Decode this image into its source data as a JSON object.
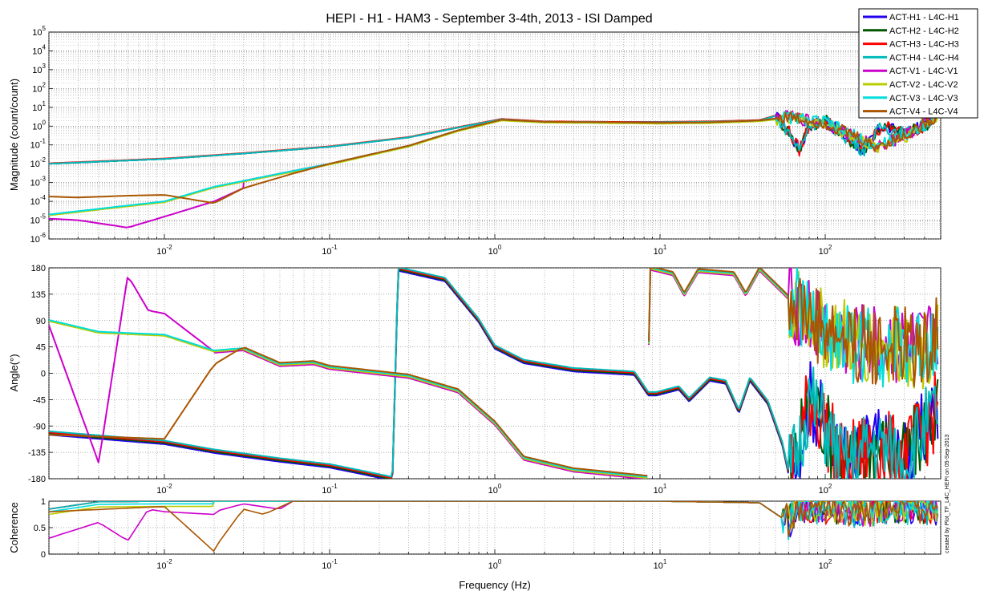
{
  "chart_data": {
    "type": "line",
    "title": "HEPI - H1 - HAM3 - September 3-4th, 2013 - ISI Damped",
    "xlabel": "Frequency (Hz)",
    "xscale": "log",
    "xlim": [
      0.002,
      500
    ],
    "x_ticks": [
      {
        "value": 0.01,
        "base": "10",
        "exp": "-2"
      },
      {
        "value": 0.1,
        "base": "10",
        "exp": "-1"
      },
      {
        "value": 1,
        "base": "10",
        "exp": "0"
      },
      {
        "value": 10,
        "base": "10",
        "exp": "1"
      },
      {
        "value": 100,
        "base": "10",
        "exp": "2"
      }
    ],
    "side_note": "created by Plot_TF_L4C_HEPI on 05-Sep-2013",
    "legend_position": "top-right",
    "series": [
      {
        "name": "ACT-H1 - L4C-H1",
        "color": "#2200ee"
      },
      {
        "name": "ACT-H2 - L4C-H2",
        "color": "#005500"
      },
      {
        "name": "ACT-H3 - L4C-H3",
        "color": "#ff0000"
      },
      {
        "name": "ACT-H4 - L4C-H4",
        "color": "#00bbbb"
      },
      {
        "name": "ACT-V1 - L4C-V1",
        "color": "#cc00cc"
      },
      {
        "name": "ACT-V2 - L4C-V2",
        "color": "#bbcc00"
      },
      {
        "name": "ACT-V3 - L4C-V3",
        "color": "#00dddd"
      },
      {
        "name": "ACT-V4 - L4C-V4",
        "color": "#aa5500"
      }
    ],
    "subplots": {
      "magnitude": {
        "ylabel": "Magnitude (count/count)",
        "yscale": "log",
        "ylim": [
          1e-06,
          100000.0
        ],
        "y_ticks": [
          {
            "value": 1e-06,
            "base": "10",
            "exp": "-6"
          },
          {
            "value": 1e-05,
            "base": "10",
            "exp": "-5"
          },
          {
            "value": 0.0001,
            "base": "10",
            "exp": "-4"
          },
          {
            "value": 0.001,
            "base": "10",
            "exp": "-3"
          },
          {
            "value": 0.01,
            "base": "10",
            "exp": "-2"
          },
          {
            "value": 0.1,
            "base": "10",
            "exp": "-1"
          },
          {
            "value": 1,
            "base": "10",
            "exp": "0"
          },
          {
            "value": 10,
            "base": "10",
            "exp": "1"
          },
          {
            "value": 100,
            "base": "10",
            "exp": "2"
          },
          {
            "value": 1000,
            "base": "10",
            "exp": "3"
          },
          {
            "value": 10000,
            "base": "10",
            "exp": "4"
          },
          {
            "value": 100000,
            "base": "10",
            "exp": "5"
          }
        ],
        "data": {
          "h": [
            [
              0.002,
              0.01
            ],
            [
              0.01,
              0.018
            ],
            [
              0.03,
              0.035
            ],
            [
              0.1,
              0.08
            ],
            [
              0.3,
              0.25
            ],
            [
              0.7,
              1.1
            ],
            [
              1.1,
              2.3
            ],
            [
              2,
              1.7
            ],
            [
              5,
              1.6
            ],
            [
              10,
              1.6
            ],
            [
              20,
              1.7
            ],
            [
              40,
              2.0
            ],
            [
              50,
              3.5
            ],
            [
              60,
              0.5
            ],
            [
              70,
              0.05
            ],
            [
              80,
              1.2
            ],
            [
              100,
              2.0
            ],
            [
              130,
              0.3
            ],
            [
              170,
              0.05
            ],
            [
              220,
              1.0
            ],
            [
              300,
              0.4
            ],
            [
              400,
              1.0
            ],
            [
              480,
              5.0
            ]
          ],
          "v_low": [
            [
              0.002,
              2e-05
            ],
            [
              0.01,
              0.0001
            ],
            [
              0.02,
              0.0006
            ],
            [
              0.05,
              0.003
            ],
            [
              0.1,
              0.01
            ],
            [
              0.3,
              0.09
            ],
            [
              0.6,
              0.6
            ],
            [
              1.1,
              2.2
            ],
            [
              2,
              1.7
            ],
            [
              5,
              1.6
            ],
            [
              10,
              1.5
            ],
            [
              20,
              1.6
            ],
            [
              40,
              2.0
            ],
            [
              60,
              3.0
            ],
            [
              100,
              1.5
            ],
            [
              150,
              0.3
            ],
            [
              200,
              0.08
            ],
            [
              300,
              0.3
            ],
            [
              480,
              3.5
            ]
          ],
          "v1": [
            [
              0.002,
              1.2e-05
            ],
            [
              0.003,
              1e-05
            ],
            [
              0.006,
              4e-06
            ],
            [
              0.012,
              2.5e-05
            ],
            [
              0.02,
              0.0001
            ],
            [
              0.03,
              0.0005
            ]
          ],
          "v4": [
            [
              0.002,
              0.00018
            ],
            [
              0.003,
              0.00016
            ],
            [
              0.006,
              0.0002
            ],
            [
              0.01,
              0.00022
            ],
            [
              0.02,
              8e-05
            ],
            [
              0.03,
              0.0005
            ],
            [
              0.06,
              0.003
            ],
            [
              0.1,
              0.01
            ]
          ]
        }
      },
      "phase": {
        "ylabel": "Angle(°)",
        "ylim": [
          -180,
          180
        ],
        "y_ticks": [
          -180,
          -135,
          -90,
          -45,
          0,
          45,
          90,
          135,
          180
        ],
        "data": {
          "h": [
            [
              0.002,
              -102
            ],
            [
              0.01,
              -118
            ],
            [
              0.02,
              -133
            ],
            [
              0.05,
              -148
            ],
            [
              0.1,
              -158
            ],
            [
              0.15,
              -168
            ],
            [
              0.24,
              -180
            ],
            [
              0.26,
              178
            ],
            [
              0.5,
              160
            ],
            [
              0.8,
              90
            ],
            [
              1.0,
              45
            ],
            [
              1.5,
              20
            ],
            [
              3,
              6
            ],
            [
              7,
              0
            ],
            [
              8.5,
              -35
            ],
            [
              9.5,
              -35
            ],
            [
              13,
              -25
            ],
            [
              15,
              -45
            ],
            [
              20,
              -10
            ],
            [
              25,
              -15
            ],
            [
              30,
              -65
            ],
            [
              35,
              -10
            ],
            [
              45,
              -50
            ],
            [
              55,
              -120
            ],
            [
              60,
              -170
            ],
            [
              70,
              -120
            ],
            [
              80,
              -40
            ],
            [
              100,
              -90
            ],
            [
              130,
              -160
            ],
            [
              200,
              -120
            ],
            [
              300,
              -150
            ],
            [
              480,
              -60
            ]
          ],
          "v": [
            [
              0.002,
              90
            ],
            [
              0.004,
              70
            ],
            [
              0.01,
              65
            ],
            [
              0.02,
              38
            ],
            [
              0.03,
              42
            ],
            [
              0.05,
              15
            ],
            [
              0.08,
              18
            ],
            [
              0.1,
              10
            ],
            [
              0.3,
              -5
            ],
            [
              0.6,
              -30
            ],
            [
              1.0,
              -85
            ],
            [
              1.5,
              -145
            ],
            [
              3,
              -165
            ],
            [
              8.5,
              -178
            ],
            [
              8.6,
              180
            ],
            [
              12,
              170
            ],
            [
              14,
              135
            ],
            [
              17,
              175
            ],
            [
              28,
              170
            ],
            [
              33,
              135
            ],
            [
              40,
              178
            ],
            [
              55,
              140
            ],
            [
              70,
              110
            ],
            [
              100,
              70
            ],
            [
              150,
              50
            ],
            [
              250,
              45
            ],
            [
              400,
              40
            ],
            [
              480,
              80
            ]
          ],
          "v1": [
            [
              0.002,
              85
            ],
            [
              0.004,
              -150
            ],
            [
              0.006,
              170
            ],
            [
              0.008,
              110
            ],
            [
              0.01,
              105
            ],
            [
              0.02,
              40
            ]
          ],
          "v4": [
            [
              0.002,
              -108
            ],
            [
              0.01,
              -115
            ],
            [
              0.02,
              12
            ],
            [
              0.03,
              42
            ],
            [
              0.05,
              15
            ]
          ]
        }
      },
      "coherence": {
        "ylabel": "Coherence",
        "ylim": [
          0,
          1
        ],
        "y_ticks": [
          0,
          0.5,
          1
        ],
        "data": {
          "all": [
            [
              0.002,
              0.85
            ],
            [
              0.004,
              0.99
            ],
            [
              0.01,
              1.0
            ],
            [
              0.05,
              1.0
            ],
            [
              0.1,
              1.0
            ],
            [
              1,
              1.0
            ],
            [
              10,
              1.0
            ],
            [
              40,
              0.97
            ],
            [
              60,
              0.6
            ],
            [
              70,
              0.95
            ],
            [
              100,
              0.9
            ],
            [
              150,
              0.85
            ],
            [
              250,
              0.9
            ],
            [
              480,
              0.9
            ]
          ],
          "v1": [
            [
              0.002,
              0.35
            ],
            [
              0.004,
              0.65
            ],
            [
              0.006,
              0.3
            ],
            [
              0.008,
              0.9
            ],
            [
              0.01,
              0.85
            ],
            [
              0.02,
              0.8
            ],
            [
              0.03,
              0.95
            ],
            [
              0.05,
              0.85
            ],
            [
              0.06,
              1.0
            ]
          ],
          "v4": [
            [
              0.002,
              0.85
            ],
            [
              0.01,
              0.95
            ],
            [
              0.02,
              0.1
            ],
            [
              0.03,
              0.85
            ],
            [
              0.04,
              0.75
            ],
            [
              0.06,
              1.0
            ]
          ]
        }
      }
    }
  }
}
